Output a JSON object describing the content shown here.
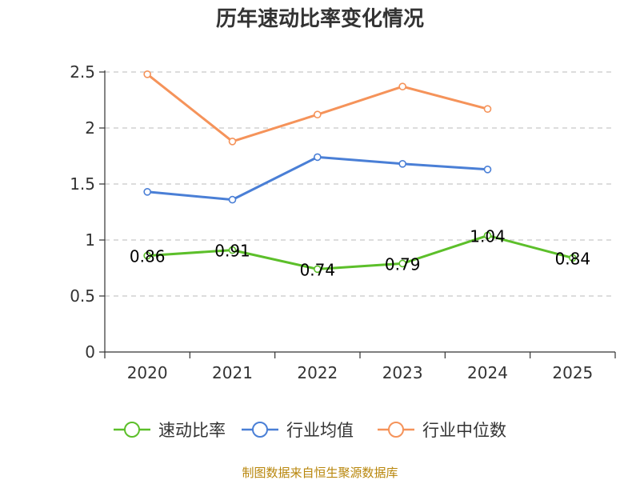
{
  "chart_data": {
    "type": "line",
    "title": "历年速动比率变化情况",
    "categories": [
      "2020",
      "2021",
      "2022",
      "2023",
      "2024",
      "2025"
    ],
    "y_ticks": [
      "0",
      "0.5",
      "1",
      "1.5",
      "2",
      "2.5"
    ],
    "ylim": [
      0,
      2.5
    ],
    "grid": true,
    "legend_position": "bottom",
    "series": [
      {
        "name": "速动比率",
        "color": "#5cbf2a",
        "values": [
          0.86,
          0.91,
          0.74,
          0.79,
          1.04,
          0.84
        ],
        "data_labels": [
          "0.86",
          "0.91",
          "0.74",
          "0.79",
          "1.04",
          "0.84"
        ]
      },
      {
        "name": "行业均值",
        "color": "#4a7fd6",
        "values": [
          1.43,
          1.36,
          1.74,
          1.68,
          1.63,
          null
        ]
      },
      {
        "name": "行业中位数",
        "color": "#f5935a",
        "values": [
          2.48,
          1.88,
          2.12,
          2.37,
          2.17,
          null
        ]
      }
    ],
    "source": "制图数据来自恒生聚源数据库"
  }
}
